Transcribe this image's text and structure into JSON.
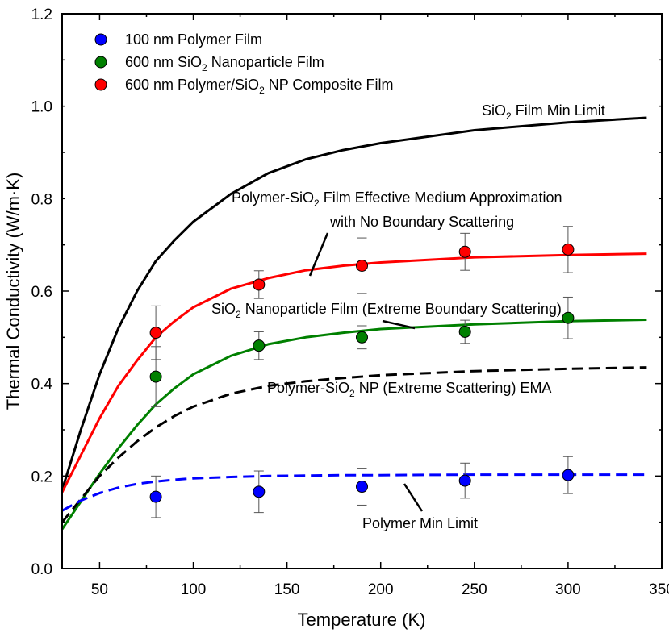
{
  "chart_data": {
    "type": "scatter",
    "xlabel": "Temperature (K)",
    "ylabel": "Thermal Conductivity (W/m·K)",
    "xlim": [
      30,
      350
    ],
    "ylim": [
      0.0,
      1.2
    ],
    "x_ticks": [
      50,
      100,
      150,
      200,
      250,
      300,
      350
    ],
    "y_ticks": [
      0.0,
      0.2,
      0.4,
      0.6,
      0.8,
      1.0,
      1.2
    ],
    "x_tick_labels": [
      "50",
      "100",
      "150",
      "200",
      "250",
      "300",
      "350"
    ],
    "y_tick_labels": [
      "0.0",
      "0.2",
      "0.4",
      "0.6",
      "0.8",
      "1.0",
      "1.2"
    ],
    "grid": false,
    "legend_position": "top-left",
    "series": [
      {
        "name": "100 nm Polymer Film",
        "kind": "points",
        "color": "#0000ff",
        "x": [
          80,
          135,
          190,
          245,
          300
        ],
        "y": [
          0.155,
          0.166,
          0.177,
          0.19,
          0.202
        ],
        "err": [
          0.045,
          0.045,
          0.04,
          0.038,
          0.04
        ]
      },
      {
        "name": "600 nm SiO2 Nanoparticle Film",
        "kind": "points",
        "color": "#008000",
        "x": [
          80,
          135,
          190,
          245,
          300
        ],
        "y": [
          0.415,
          0.482,
          0.5,
          0.512,
          0.542
        ],
        "err": [
          0.065,
          0.03,
          0.025,
          0.025,
          0.045
        ]
      },
      {
        "name": "600 nm Polymer/SiO2 NP Composite Film",
        "kind": "points",
        "color": "#ff0000",
        "x": [
          80,
          135,
          190,
          245,
          300
        ],
        "y": [
          0.51,
          0.614,
          0.655,
          0.685,
          0.69
        ],
        "err": [
          0.058,
          0.03,
          0.06,
          0.04,
          0.05
        ]
      }
    ],
    "curves": [
      {
        "label": "SiO2 Film Min Limit",
        "color": "#000000",
        "dash": "solid",
        "x": [
          30,
          40,
          50,
          60,
          70,
          80,
          90,
          100,
          120,
          140,
          160,
          180,
          200,
          250,
          300,
          342
        ],
        "y": [
          0.17,
          0.3,
          0.42,
          0.52,
          0.6,
          0.665,
          0.71,
          0.75,
          0.81,
          0.855,
          0.885,
          0.905,
          0.92,
          0.948,
          0.965,
          0.975
        ]
      },
      {
        "label": "Polymer-SiO2 Film Effective Medium Approximation with No Boundary Scattering",
        "color": "#ff0000",
        "dash": "solid",
        "x": [
          30,
          40,
          50,
          60,
          70,
          80,
          90,
          100,
          120,
          140,
          160,
          180,
          200,
          250,
          300,
          342
        ],
        "y": [
          0.165,
          0.245,
          0.325,
          0.395,
          0.45,
          0.5,
          0.535,
          0.565,
          0.605,
          0.628,
          0.645,
          0.655,
          0.662,
          0.673,
          0.678,
          0.681
        ]
      },
      {
        "label": "SiO2 Nanoparticle Film (Extreme Boundary Scattering)",
        "color": "#008000",
        "dash": "solid",
        "x": [
          30,
          40,
          50,
          60,
          70,
          80,
          90,
          100,
          120,
          140,
          160,
          180,
          200,
          250,
          300,
          342
        ],
        "y": [
          0.085,
          0.145,
          0.205,
          0.26,
          0.31,
          0.355,
          0.39,
          0.42,
          0.46,
          0.485,
          0.5,
          0.51,
          0.518,
          0.528,
          0.535,
          0.538
        ]
      },
      {
        "label": "Polymer-SiO2 NP (Extreme Scattering) EMA",
        "color": "#000000",
        "dash": "dashed",
        "x": [
          30,
          40,
          50,
          60,
          70,
          80,
          90,
          100,
          120,
          140,
          160,
          180,
          200,
          250,
          300,
          342
        ],
        "y": [
          0.1,
          0.15,
          0.2,
          0.24,
          0.275,
          0.305,
          0.33,
          0.35,
          0.378,
          0.395,
          0.405,
          0.412,
          0.418,
          0.427,
          0.432,
          0.435
        ]
      },
      {
        "label": "Polymer Min Limit",
        "color": "#0000ff",
        "dash": "dashed",
        "x": [
          30,
          40,
          50,
          60,
          70,
          80,
          90,
          100,
          120,
          140,
          160,
          180,
          200,
          250,
          300,
          342
        ],
        "y": [
          0.125,
          0.147,
          0.163,
          0.175,
          0.183,
          0.188,
          0.192,
          0.195,
          0.198,
          0.2,
          0.201,
          0.202,
          0.202,
          0.203,
          0.203,
          0.203
        ]
      }
    ],
    "annotations": {
      "sio2_film_min_limit": {
        "main": "SiO",
        "sub": "2",
        "rest": " Film Min Limit"
      },
      "ema_line1": {
        "main": "Polymer-SiO",
        "sub": "2",
        "rest": " Film Effective Medium Approximation"
      },
      "ema_line2": "with No Boundary Scattering",
      "sio2_np_film": {
        "main": "SiO",
        "sub": "2",
        "rest": " Nanoparticle Film (Extreme Boundary Scattering)"
      },
      "extreme_ema": {
        "main": "Polymer-SiO",
        "sub": "2",
        "rest": " NP (Extreme Scattering) EMA"
      },
      "polymer_min_limit": "Polymer Min Limit"
    },
    "legend": [
      {
        "color": "#0000ff",
        "main": "100 nm Polymer Film",
        "sub": "",
        "rest": ""
      },
      {
        "color": "#008000",
        "main": "600 nm SiO",
        "sub": "2",
        "rest": " Nanoparticle Film"
      },
      {
        "color": "#ff0000",
        "main": "600 nm Polymer/SiO",
        "sub": "2",
        "rest": " NP Composite Film"
      }
    ]
  }
}
